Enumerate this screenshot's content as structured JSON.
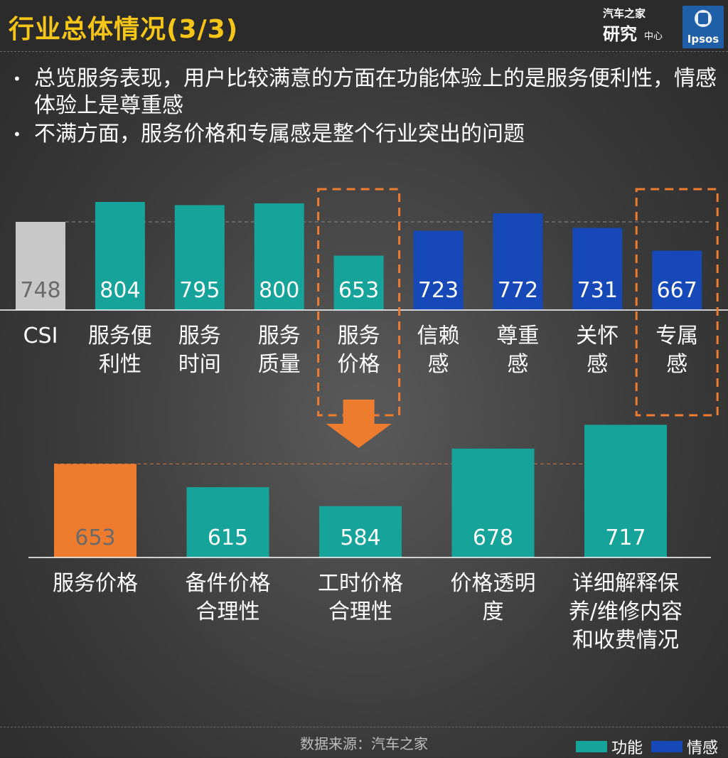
{
  "header": {
    "title": "行业总体情况(3/3)",
    "logo_brand_line1": "汽车之家",
    "logo_brand_line2": "研究",
    "logo_brand_line3": "中心",
    "logo_partner": "Ipsos"
  },
  "bullets": [
    "总览服务表现，用户比较满意的方面在功能体验上的是服务便利性，情感体验上是尊重感",
    "不满方面，服务价格和专属感是整个行业突出的问题"
  ],
  "colors": {
    "functional": "#16a39a",
    "emotional": "#1748b8",
    "csi": "#c8c8c8",
    "highlight": "#ee7c2e",
    "title": "#f5c518"
  },
  "chart_data": [
    {
      "type": "bar",
      "categories": [
        "CSI",
        "服务便利性",
        "服务时间",
        "服务质量",
        "服务价格",
        "信赖感",
        "尊重感",
        "关怀感",
        "专属感"
      ],
      "category_lines": [
        [
          "CSI"
        ],
        [
          "服务便",
          "利性"
        ],
        [
          "服务",
          "时间"
        ],
        [
          "服务",
          "质量"
        ],
        [
          "服务",
          "价格"
        ],
        [
          "信赖",
          "感"
        ],
        [
          "尊重",
          "感"
        ],
        [
          "关怀",
          "感"
        ],
        [
          "专属",
          "感"
        ]
      ],
      "values": [
        748,
        804,
        795,
        800,
        653,
        723,
        772,
        731,
        667
      ],
      "groups": [
        "csi",
        "functional",
        "functional",
        "functional",
        "functional",
        "emotional",
        "emotional",
        "emotional",
        "emotional"
      ],
      "highlighted": [
        "服务价格",
        "专属感"
      ],
      "reference_line": 748
    },
    {
      "type": "bar",
      "categories": [
        "服务价格",
        "备件价格合理性",
        "工时价格合理性",
        "价格透明度",
        "详细解释保养/维修内容和收费情况"
      ],
      "category_lines": [
        [
          "服务价格"
        ],
        [
          "备件价格",
          "合理性"
        ],
        [
          "工时价格",
          "合理性"
        ],
        [
          "价格透明",
          "度"
        ],
        [
          "详细解释保",
          "养/维修内容",
          "和收费情况"
        ]
      ],
      "values": [
        653,
        615,
        584,
        678,
        717
      ],
      "groups": [
        "highlight",
        "functional",
        "functional",
        "functional",
        "functional"
      ],
      "reference_line": 653
    }
  ],
  "footer": {
    "source": "数据来源：汽车之家"
  },
  "legend": [
    {
      "label": "功能",
      "color": "#16a39a"
    },
    {
      "label": "情感",
      "color": "#1748b8"
    }
  ]
}
